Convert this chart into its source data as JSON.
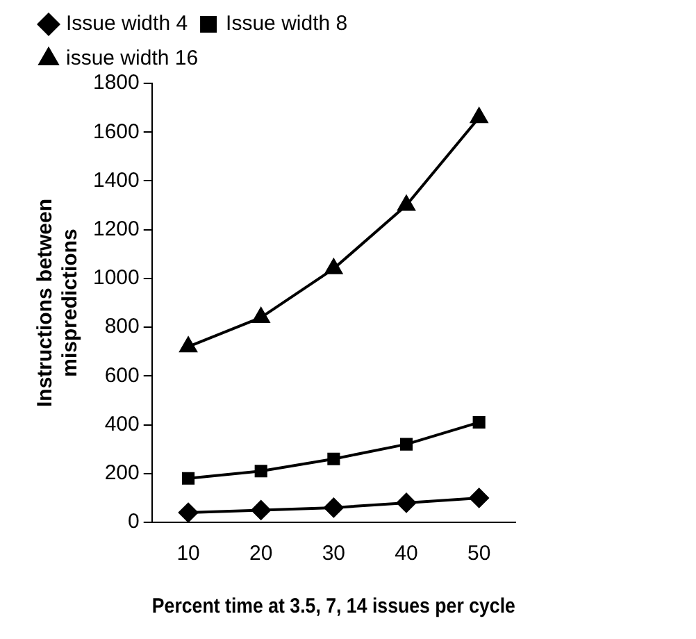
{
  "chart_data": {
    "type": "line",
    "xlabel": "Percent time at 3.5, 7, 14 issues per cycle",
    "ylabel": "Instructions between mispredictions",
    "categories": [
      "10",
      "20",
      "30",
      "40",
      "50"
    ],
    "series": [
      {
        "name": "Issue width 4",
        "color": "#000000",
        "marker": "diamond",
        "values": [
          40,
          50,
          60,
          80,
          100
        ]
      },
      {
        "name": "Issue width 8",
        "color": "#000000",
        "marker": "square",
        "values": [
          180,
          210,
          260,
          320,
          410
        ]
      },
      {
        "name": "issue width 16",
        "color": "#000000",
        "marker": "triangle",
        "values": [
          720,
          840,
          1040,
          1300,
          1660
        ]
      }
    ],
    "ylim": [
      0,
      1800
    ],
    "yticks": [
      0,
      200,
      400,
      600,
      800,
      1000,
      1200,
      1400,
      1600,
      1800
    ],
    "grid": false,
    "legend": "top",
    "line_style": "solid"
  }
}
